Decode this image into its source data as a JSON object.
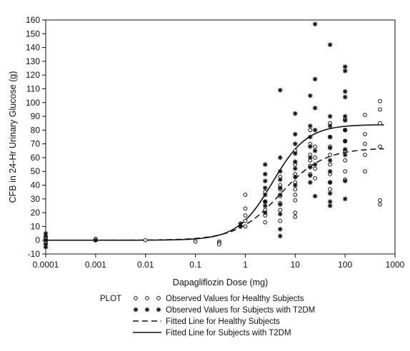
{
  "chart_data": {
    "type": "scatter",
    "xlabel": "Dapagliflozin Dose (mg)",
    "ylabel": "CFB in 24-Hr Urinary Glucose (g)",
    "x_scale": "log",
    "xlim": [
      0.0001,
      1000
    ],
    "ylim": [
      -10,
      160
    ],
    "x_ticks": [
      0.0001,
      0.001,
      0.01,
      0.1,
      1,
      10,
      100,
      1000
    ],
    "x_tick_labels": [
      "0.0001",
      "0.001",
      "0.01",
      "0.1",
      "1",
      "10",
      "100",
      "1000"
    ],
    "y_ticks": [
      -10,
      0,
      10,
      20,
      30,
      40,
      50,
      60,
      70,
      80,
      90,
      100,
      110,
      120,
      130,
      140,
      150,
      160
    ],
    "y_tick_labels": [
      "-10",
      "0",
      "10",
      "20",
      "30",
      "40",
      "50",
      "60",
      "70",
      "80",
      "90",
      "100",
      "110",
      "120",
      "130",
      "140",
      "150",
      "160"
    ],
    "legend": {
      "title": "PLOT",
      "placement": "bottom",
      "entries": [
        "Observed Values for Healthy Subjects",
        "Observed Values for Subjects with T2DM",
        "Fitted Line for Healthy Subjects",
        "Fitted Line for Subjects with T2DM"
      ]
    },
    "series": [
      {
        "marker": "open-circle",
        "points": [
          [
            0.0001,
            0
          ],
          [
            0.0001,
            1
          ],
          [
            0.0001,
            -1
          ],
          [
            0.0001,
            2
          ],
          [
            0.0001,
            -2
          ],
          [
            0.001,
            0
          ],
          [
            0.001,
            1
          ],
          [
            0.01,
            0
          ],
          [
            0.1,
            -1
          ],
          [
            0.3,
            -1
          ],
          [
            0.3,
            -2
          ],
          [
            0.3,
            -3
          ],
          [
            1,
            33
          ],
          [
            1,
            23
          ],
          [
            1,
            18
          ],
          [
            1,
            14
          ],
          [
            1,
            10
          ],
          [
            2.5,
            35
          ],
          [
            2.5,
            28
          ],
          [
            2.5,
            22
          ],
          [
            2.5,
            18
          ],
          [
            2.5,
            13
          ],
          [
            5,
            46
          ],
          [
            5,
            40
          ],
          [
            5,
            37
          ],
          [
            5,
            32
          ],
          [
            5,
            27
          ],
          [
            5,
            22
          ],
          [
            5,
            14
          ],
          [
            10,
            65
          ],
          [
            10,
            55
          ],
          [
            10,
            48
          ],
          [
            10,
            42
          ],
          [
            10,
            37
          ],
          [
            10,
            33
          ],
          [
            10,
            29
          ],
          [
            10,
            20
          ],
          [
            10,
            17
          ],
          [
            20,
            80
          ],
          [
            20,
            70
          ],
          [
            20,
            62
          ],
          [
            20,
            58
          ],
          [
            20,
            54
          ],
          [
            20,
            48
          ],
          [
            25,
            68
          ],
          [
            25,
            60
          ],
          [
            25,
            52
          ],
          [
            25,
            45
          ],
          [
            50,
            85
          ],
          [
            50,
            75
          ],
          [
            50,
            68
          ],
          [
            50,
            62
          ],
          [
            50,
            55
          ],
          [
            50,
            48
          ],
          [
            50,
            42
          ],
          [
            50,
            37
          ],
          [
            100,
            88
          ],
          [
            100,
            80
          ],
          [
            100,
            72
          ],
          [
            100,
            65
          ],
          [
            100,
            58
          ],
          [
            100,
            50
          ],
          [
            100,
            44
          ],
          [
            250,
            91
          ],
          [
            250,
            77
          ],
          [
            250,
            70
          ],
          [
            250,
            62
          ],
          [
            250,
            50
          ],
          [
            500,
            101
          ],
          [
            500,
            95
          ],
          [
            500,
            85
          ],
          [
            500,
            68
          ],
          [
            500,
            29
          ],
          [
            500,
            26
          ]
        ]
      },
      {
        "marker": "asterisk",
        "points": [
          [
            0.0001,
            5
          ],
          [
            0.0001,
            3
          ],
          [
            0.0001,
            0
          ],
          [
            0.0001,
            -3
          ],
          [
            0.0001,
            -5
          ],
          [
            0.001,
            0
          ],
          [
            0.8,
            12
          ],
          [
            0.8,
            10
          ],
          [
            2.5,
            55
          ],
          [
            2.5,
            48
          ],
          [
            2.5,
            43
          ],
          [
            2.5,
            38
          ],
          [
            2.5,
            33
          ],
          [
            2.5,
            28
          ],
          [
            2.5,
            25
          ],
          [
            2.5,
            20
          ],
          [
            5,
            109
          ],
          [
            5,
            60
          ],
          [
            5,
            50
          ],
          [
            5,
            44
          ],
          [
            5,
            38
          ],
          [
            5,
            33
          ],
          [
            5,
            26
          ],
          [
            5,
            19
          ],
          [
            5,
            8
          ],
          [
            5,
            3
          ],
          [
            10,
            92
          ],
          [
            10,
            77
          ],
          [
            10,
            70
          ],
          [
            10,
            63
          ],
          [
            10,
            57
          ],
          [
            10,
            52
          ],
          [
            10,
            46
          ],
          [
            10,
            40
          ],
          [
            20,
            105
          ],
          [
            20,
            83
          ],
          [
            20,
            75
          ],
          [
            20,
            68
          ],
          [
            20,
            60
          ],
          [
            20,
            53
          ],
          [
            20,
            47
          ],
          [
            20,
            42
          ],
          [
            25,
            157
          ],
          [
            25,
            117
          ],
          [
            25,
            96
          ],
          [
            25,
            80
          ],
          [
            25,
            65
          ],
          [
            25,
            55
          ],
          [
            25,
            32
          ],
          [
            50,
            142
          ],
          [
            50,
            90
          ],
          [
            50,
            83
          ],
          [
            50,
            75
          ],
          [
            50,
            67
          ],
          [
            50,
            58
          ],
          [
            50,
            50
          ],
          [
            50,
            42
          ],
          [
            50,
            34
          ],
          [
            50,
            28
          ],
          [
            50,
            25
          ],
          [
            100,
            126
          ],
          [
            100,
            123
          ],
          [
            100,
            108
          ],
          [
            100,
            104
          ],
          [
            100,
            90
          ],
          [
            100,
            87
          ],
          [
            100,
            80
          ],
          [
            100,
            72
          ],
          [
            100,
            66
          ],
          [
            100,
            62
          ],
          [
            100,
            43
          ],
          [
            100,
            30
          ]
        ]
      },
      {
        "line_style": "dashed",
        "emax": 67,
        "ec50": 5,
        "hill": 1.0
      },
      {
        "line_style": "solid",
        "emax": 84,
        "ec50": 3.5,
        "hill": 1.25
      }
    ]
  }
}
